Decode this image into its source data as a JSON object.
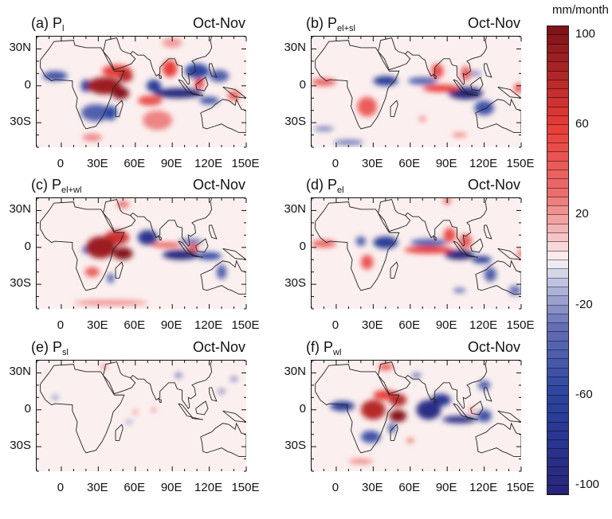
{
  "colorbar": {
    "unit": "mm/month",
    "range": [
      -104,
      104
    ],
    "step": 4,
    "tick_labels": [
      "100",
      "60",
      "20",
      "-20",
      "-60",
      "-100"
    ],
    "tick_values": [
      100,
      60,
      20,
      -20,
      -60,
      -100
    ],
    "colors": {
      "max": "#7a1218",
      "high": "#e8323a",
      "mid_high": "#f4b6b8",
      "zero": "#fbf0f0",
      "mid_low": "#b7bbe0",
      "low": "#2c44a0",
      "min": "#27257a"
    }
  },
  "axes": {
    "lat_labels": [
      "30N",
      "0",
      "30S"
    ],
    "lat_values": [
      30,
      0,
      -30
    ],
    "lon_labels": [
      "0",
      "30E",
      "60E",
      "90E",
      "120E",
      "150E"
    ],
    "lon_values": [
      0,
      30,
      60,
      90,
      120,
      150
    ],
    "lon_range": [
      -20,
      150
    ],
    "lat_range": [
      -50,
      40
    ]
  },
  "panels": [
    {
      "label": "(a)",
      "symbol": "P",
      "subscript": "l",
      "season": "Oct-Nov",
      "anomalies": [
        [
          78,
          -28,
          12,
          8,
          25
        ],
        [
          25,
          -42,
          8,
          3,
          25
        ],
        [
          90,
          35,
          8,
          4,
          20
        ],
        [
          28,
          -22,
          12,
          7,
          -40
        ],
        [
          -5,
          8,
          10,
          4,
          -50
        ],
        [
          128,
          8,
          8,
          5,
          -40
        ],
        [
          120,
          -12,
          8,
          3,
          -50
        ],
        [
          110,
          12,
          10,
          6,
          -60
        ],
        [
          75,
          0,
          6,
          5,
          -70
        ],
        [
          20,
          0,
          4,
          5,
          -70
        ],
        [
          40,
          -22,
          5,
          6,
          -60
        ],
        [
          95,
          -6,
          20,
          4,
          -100
        ],
        [
          45,
          12,
          12,
          5,
          60
        ],
        [
          72,
          -12,
          10,
          4,
          50
        ],
        [
          88,
          14,
          6,
          7,
          60
        ],
        [
          112,
          2,
          4,
          4,
          60
        ],
        [
          140,
          -8,
          5,
          4,
          40
        ],
        [
          35,
          0,
          14,
          7,
          90
        ],
        [
          52,
          8,
          6,
          5,
          80
        ],
        [
          48,
          -6,
          7,
          5,
          100
        ]
      ]
    },
    {
      "label": "(b)",
      "symbol": "P",
      "subscript": "el+sl",
      "season": "Oct-Nov",
      "anomalies": [
        [
          10,
          -46,
          12,
          2,
          -30
        ],
        [
          -10,
          -35,
          8,
          2,
          -25
        ],
        [
          112,
          10,
          6,
          2,
          -25
        ],
        [
          70,
          4,
          12,
          3,
          -40
        ],
        [
          120,
          -18,
          8,
          6,
          -50
        ],
        [
          40,
          4,
          10,
          4,
          -70
        ],
        [
          105,
          -6,
          14,
          5,
          -100
        ],
        [
          -10,
          3,
          10,
          3,
          40
        ],
        [
          82,
          12,
          5,
          6,
          50
        ],
        [
          105,
          10,
          4,
          6,
          40
        ],
        [
          25,
          -17,
          8,
          8,
          40
        ],
        [
          148,
          -2,
          4,
          4,
          40
        ],
        [
          100,
          -40,
          6,
          1.5,
          30
        ],
        [
          70,
          -27,
          3,
          2,
          25
        ],
        [
          85,
          -2,
          15,
          3,
          60
        ]
      ]
    },
    {
      "label": "(c)",
      "symbol": "P",
      "subscript": "el+wl",
      "season": "Oct-Nov",
      "anomalies": [
        [
          40,
          -45,
          30,
          2,
          25
        ],
        [
          50,
          35,
          5,
          3,
          30
        ],
        [
          105,
          5,
          10,
          2,
          -35
        ],
        [
          130,
          -20,
          4,
          6,
          -40
        ],
        [
          40,
          -25,
          3,
          4,
          -40
        ],
        [
          20,
          -2,
          3,
          3,
          -50
        ],
        [
          120,
          -7,
          10,
          3,
          -60
        ],
        [
          70,
          8,
          8,
          6,
          -80
        ],
        [
          97,
          -6,
          15,
          4,
          -100
        ],
        [
          25,
          -20,
          6,
          4,
          40
        ],
        [
          85,
          2,
          12,
          2,
          50
        ],
        [
          107,
          0,
          4,
          3,
          50
        ],
        [
          45,
          8,
          10,
          6,
          70
        ],
        [
          32,
          0,
          12,
          9,
          90
        ],
        [
          50,
          -5,
          8,
          5,
          100
        ]
      ]
    },
    {
      "label": "(d)",
      "symbol": "P",
      "subscript": "el",
      "season": "Oct-Nov",
      "anomalies": [
        [
          145,
          -35,
          5,
          4,
          -30
        ],
        [
          100,
          -35,
          5,
          2,
          -30
        ],
        [
          75,
          4,
          15,
          3,
          -40
        ],
        [
          125,
          -22,
          5,
          6,
          -40
        ],
        [
          20,
          5,
          4,
          4,
          -40
        ],
        [
          40,
          4,
          10,
          5,
          -70
        ],
        [
          118,
          -10,
          8,
          3,
          -70
        ],
        [
          100,
          -6,
          12,
          4,
          -100
        ],
        [
          -10,
          3,
          10,
          3,
          40
        ],
        [
          92,
          10,
          5,
          6,
          50
        ],
        [
          105,
          5,
          5,
          6,
          40
        ],
        [
          25,
          -12,
          5,
          6,
          45
        ],
        [
          150,
          -5,
          3,
          3,
          40
        ],
        [
          90,
          38,
          3,
          3,
          40
        ],
        [
          75,
          -2,
          20,
          3,
          60
        ]
      ]
    },
    {
      "label": "(e)",
      "symbol": "P",
      "subscript": "sl",
      "season": "Oct-Nov",
      "anomalies": [
        [
          35,
          35,
          2,
          2,
          40
        ],
        [
          75,
          0,
          2,
          1.5,
          30
        ],
        [
          60,
          -2,
          2,
          1.5,
          30
        ],
        [
          95,
          28,
          3,
          2,
          -30
        ],
        [
          140,
          25,
          3,
          2,
          -25
        ],
        [
          -5,
          10,
          3,
          2,
          -20
        ],
        [
          130,
          15,
          3,
          2,
          -25
        ],
        [
          55,
          -10,
          3,
          1.5,
          -20
        ]
      ]
    },
    {
      "label": "(f)",
      "symbol": "P",
      "subscript": "wl",
      "season": "Oct-Nov",
      "anomalies": [
        [
          20,
          -42,
          10,
          2,
          25
        ],
        [
          60,
          -25,
          3,
          2,
          30
        ],
        [
          65,
          28,
          4,
          2,
          -35
        ],
        [
          120,
          20,
          5,
          4,
          -40
        ],
        [
          28,
          -22,
          8,
          5,
          -50
        ],
        [
          120,
          -5,
          6,
          5,
          -50
        ],
        [
          45,
          -15,
          3,
          4,
          -50
        ],
        [
          5,
          3,
          10,
          4,
          -70
        ],
        [
          85,
          8,
          8,
          5,
          -80
        ],
        [
          75,
          0,
          10,
          8,
          -90
        ],
        [
          100,
          -8,
          14,
          3,
          -90
        ],
        [
          40,
          35,
          6,
          3,
          40
        ],
        [
          110,
          0,
          2,
          2,
          40
        ],
        [
          40,
          12,
          10,
          4,
          60
        ],
        [
          30,
          0,
          10,
          8,
          80
        ],
        [
          50,
          8,
          7,
          5,
          80
        ],
        [
          50,
          -5,
          7,
          5,
          100
        ]
      ]
    }
  ]
}
